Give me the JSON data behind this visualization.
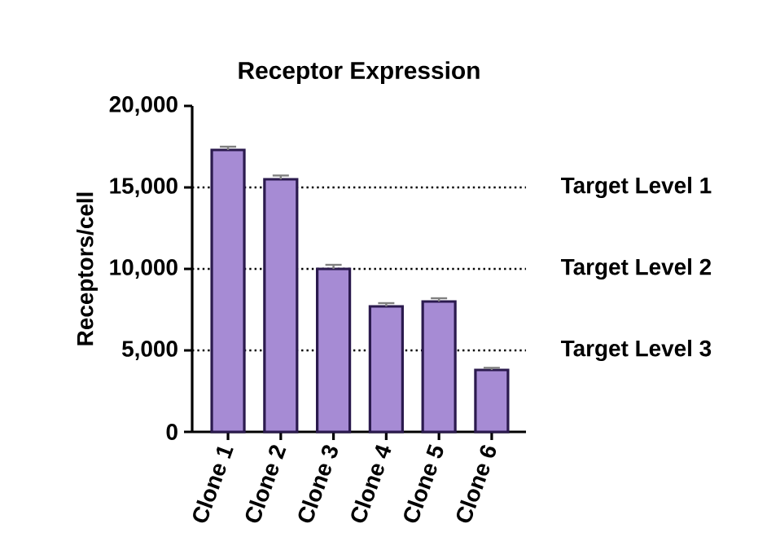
{
  "chart_data": {
    "type": "bar",
    "title": "Receptor Expression",
    "ylabel": "Receptors/cell",
    "categories": [
      "Clone 1",
      "Clone 2",
      "Clone 3",
      "Clone 4",
      "Clone 5",
      "Clone 6"
    ],
    "values": [
      17300,
      15500,
      10000,
      7700,
      8000,
      3800
    ],
    "errors": [
      200,
      230,
      250,
      200,
      200,
      130
    ],
    "color": "#a68bd4",
    "ylim": [
      0,
      20000
    ],
    "yticks": [
      {
        "value": 0,
        "label": "0"
      },
      {
        "value": 5000,
        "label": "5,000"
      },
      {
        "value": 10000,
        "label": "10,000"
      },
      {
        "value": 15000,
        "label": "15,000"
      },
      {
        "value": 20000,
        "label": "20,000"
      }
    ],
    "ref_lines": [
      {
        "axis": "y",
        "value": 15000,
        "label": "Target Level 1",
        "line_style": "dotted"
      },
      {
        "axis": "y",
        "value": 10000,
        "label": "Target Level 2",
        "line_style": "dotted"
      },
      {
        "axis": "y",
        "value": 5000,
        "label": "Target Level 3",
        "line_style": "dotted"
      }
    ],
    "grid": false
  }
}
